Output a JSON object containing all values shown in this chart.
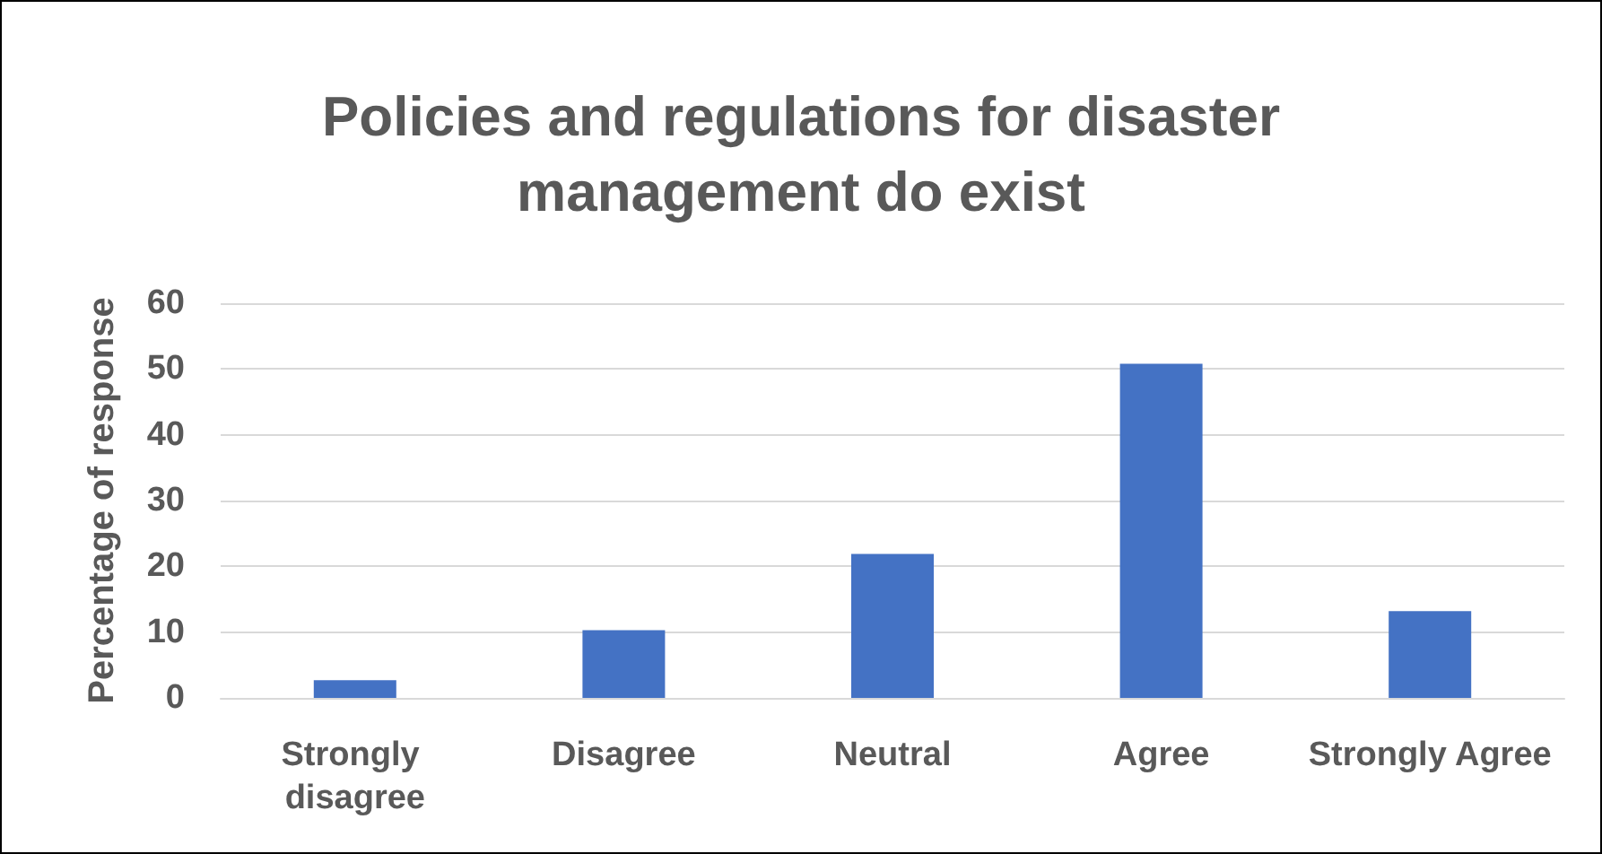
{
  "chart_data": {
    "type": "bar",
    "title": "Policies and regulations for disaster\nmanagement do exist",
    "ylabel": "Percentage of response",
    "categories": [
      "Strongly disagree",
      "Disagree",
      "Neutral",
      "Agree",
      "Strongly Agree"
    ],
    "values": [
      2.7,
      10.3,
      21.9,
      50.8,
      13.2
    ],
    "color": "#4472c4",
    "ylim": [
      0,
      60
    ],
    "yticks": [
      0,
      10,
      20,
      30,
      40,
      50,
      60
    ],
    "grid": "y"
  }
}
